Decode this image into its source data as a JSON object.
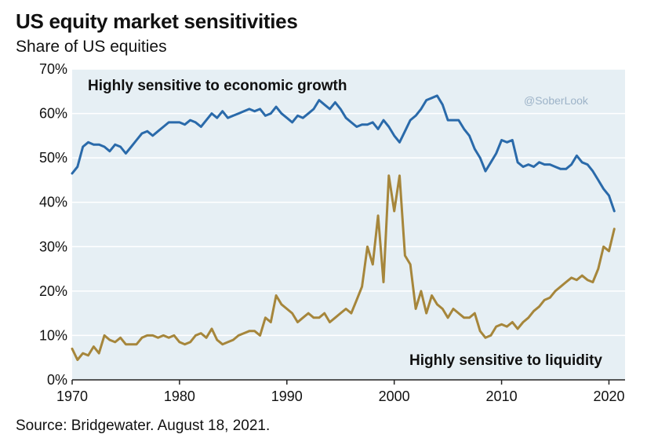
{
  "title": "US equity market sensitivities",
  "subtitle": "Share of US equities",
  "source": "Source: Bridgewater. August 18, 2021.",
  "watermark": "@SoberLook",
  "colors": {
    "plot_bg": "#e6eff4",
    "growth": "#2a6aaa",
    "liquidity": "#a6863b",
    "grid": "#ffffff"
  },
  "chart_data": {
    "type": "line",
    "title": "US equity market sensitivities",
    "subtitle": "Share of US equities",
    "xlim": [
      1970,
      2021.5
    ],
    "ylim": [
      0,
      70
    ],
    "x_ticks": [
      1970,
      1980,
      1990,
      2000,
      2010,
      2020
    ],
    "y_ticks": [
      0,
      10,
      20,
      30,
      40,
      50,
      60,
      70
    ],
    "y_tick_labels": [
      "0%",
      "10%",
      "20%",
      "30%",
      "40%",
      "50%",
      "60%",
      "70%"
    ],
    "grid": true,
    "series": [
      {
        "name": "Highly sensitive to economic growth",
        "color": "#2a6aaa",
        "x": [
          1970,
          1970.5,
          1971,
          1971.5,
          1972,
          1972.5,
          1973,
          1973.5,
          1974,
          1974.5,
          1975,
          1975.5,
          1976,
          1976.5,
          1977,
          1977.5,
          1978,
          1978.5,
          1979,
          1979.5,
          1980,
          1980.5,
          1981,
          1981.5,
          1982,
          1982.5,
          1983,
          1983.5,
          1984,
          1984.5,
          1985,
          1985.5,
          1986,
          1986.5,
          1987,
          1987.5,
          1988,
          1988.5,
          1989,
          1989.5,
          1990,
          1990.5,
          1991,
          1991.5,
          1992,
          1992.5,
          1993,
          1993.5,
          1994,
          1994.5,
          1995,
          1995.5,
          1996,
          1996.5,
          1997,
          1997.5,
          1998,
          1998.5,
          1999,
          1999.5,
          2000,
          2000.5,
          2001,
          2001.5,
          2002,
          2002.5,
          2003,
          2003.5,
          2004,
          2004.5,
          2005,
          2005.5,
          2006,
          2006.5,
          2007,
          2007.5,
          2008,
          2008.5,
          2009,
          2009.5,
          2010,
          2010.5,
          2011,
          2011.5,
          2012,
          2012.5,
          2013,
          2013.5,
          2014,
          2014.5,
          2015,
          2015.5,
          2016,
          2016.5,
          2017,
          2017.5,
          2018,
          2018.5,
          2019,
          2019.5,
          2020,
          2020.5
        ],
        "values": [
          46.5,
          48,
          52.5,
          53.5,
          53,
          53,
          52.5,
          51.5,
          53,
          52.5,
          51,
          52.5,
          54,
          55.5,
          56,
          55,
          56,
          57,
          58,
          58,
          58,
          57.5,
          58.5,
          58,
          57,
          58.5,
          60,
          59,
          60.5,
          59,
          59.5,
          60,
          60.5,
          61,
          60.5,
          61,
          59.5,
          60,
          61.5,
          60,
          59,
          58,
          59.5,
          59,
          60,
          61,
          63,
          62,
          61,
          62.5,
          61,
          59,
          58,
          57,
          57.5,
          57.5,
          58,
          56.5,
          58.5,
          57,
          55,
          53.5,
          56,
          58.5,
          59.5,
          61,
          63,
          63.5,
          64,
          62,
          58.5,
          58.5,
          58.5,
          56.5,
          55,
          52,
          50,
          47,
          49,
          51,
          54,
          53.5,
          54,
          49,
          48,
          48.5,
          48,
          49,
          48.5,
          48.5,
          48,
          47.5,
          47.5,
          48.5,
          50.5,
          49,
          48.5,
          47,
          45,
          43,
          41.5,
          38
        ]
      },
      {
        "name": "Highly sensitive to liquidity",
        "color": "#a6863b",
        "x": [
          1970,
          1970.5,
          1971,
          1971.5,
          1972,
          1972.5,
          1973,
          1973.5,
          1974,
          1974.5,
          1975,
          1975.5,
          1976,
          1976.5,
          1977,
          1977.5,
          1978,
          1978.5,
          1979,
          1979.5,
          1980,
          1980.5,
          1981,
          1981.5,
          1982,
          1982.5,
          1983,
          1983.5,
          1984,
          1984.5,
          1985,
          1985.5,
          1986,
          1986.5,
          1987,
          1987.5,
          1988,
          1988.5,
          1989,
          1989.5,
          1990,
          1990.5,
          1991,
          1991.5,
          1992,
          1992.5,
          1993,
          1993.5,
          1994,
          1994.5,
          1995,
          1995.5,
          1996,
          1996.5,
          1997,
          1997.5,
          1998,
          1998.5,
          1999,
          1999.5,
          2000,
          2000.5,
          2001,
          2001.5,
          2002,
          2002.5,
          2003,
          2003.5,
          2004,
          2004.5,
          2005,
          2005.5,
          2006,
          2006.5,
          2007,
          2007.5,
          2008,
          2008.5,
          2009,
          2009.5,
          2010,
          2010.5,
          2011,
          2011.5,
          2012,
          2012.5,
          2013,
          2013.5,
          2014,
          2014.5,
          2015,
          2015.5,
          2016,
          2016.5,
          2017,
          2017.5,
          2018,
          2018.5,
          2019,
          2019.5,
          2020,
          2020.5
        ],
        "values": [
          7,
          4.5,
          6,
          5.5,
          7.5,
          6,
          10,
          9,
          8.5,
          9.5,
          8,
          8,
          8,
          9.5,
          10,
          10,
          9.5,
          10,
          9.5,
          10,
          8.5,
          8,
          8.5,
          10,
          10.5,
          9.5,
          11.5,
          9,
          8,
          8.5,
          9,
          10,
          10.5,
          11,
          11,
          10,
          14,
          13,
          19,
          17,
          16,
          15,
          13,
          14,
          15,
          14,
          14,
          15,
          13,
          14,
          15,
          16,
          15,
          18,
          21,
          30,
          26,
          37,
          22,
          46,
          38,
          46,
          28,
          26,
          16,
          20,
          15,
          19,
          17,
          16,
          14,
          16,
          15,
          14,
          14,
          15,
          11,
          9.5,
          10,
          12,
          12.5,
          12,
          13,
          11.5,
          13,
          14,
          15.5,
          16.5,
          18,
          18.5,
          20,
          21,
          22,
          23,
          22.5,
          23.5,
          22.5,
          22,
          25,
          30,
          29,
          34
        ]
      }
    ],
    "annotations": [
      "Highly sensitive to economic growth",
      "Highly sensitive to liquidity"
    ]
  }
}
